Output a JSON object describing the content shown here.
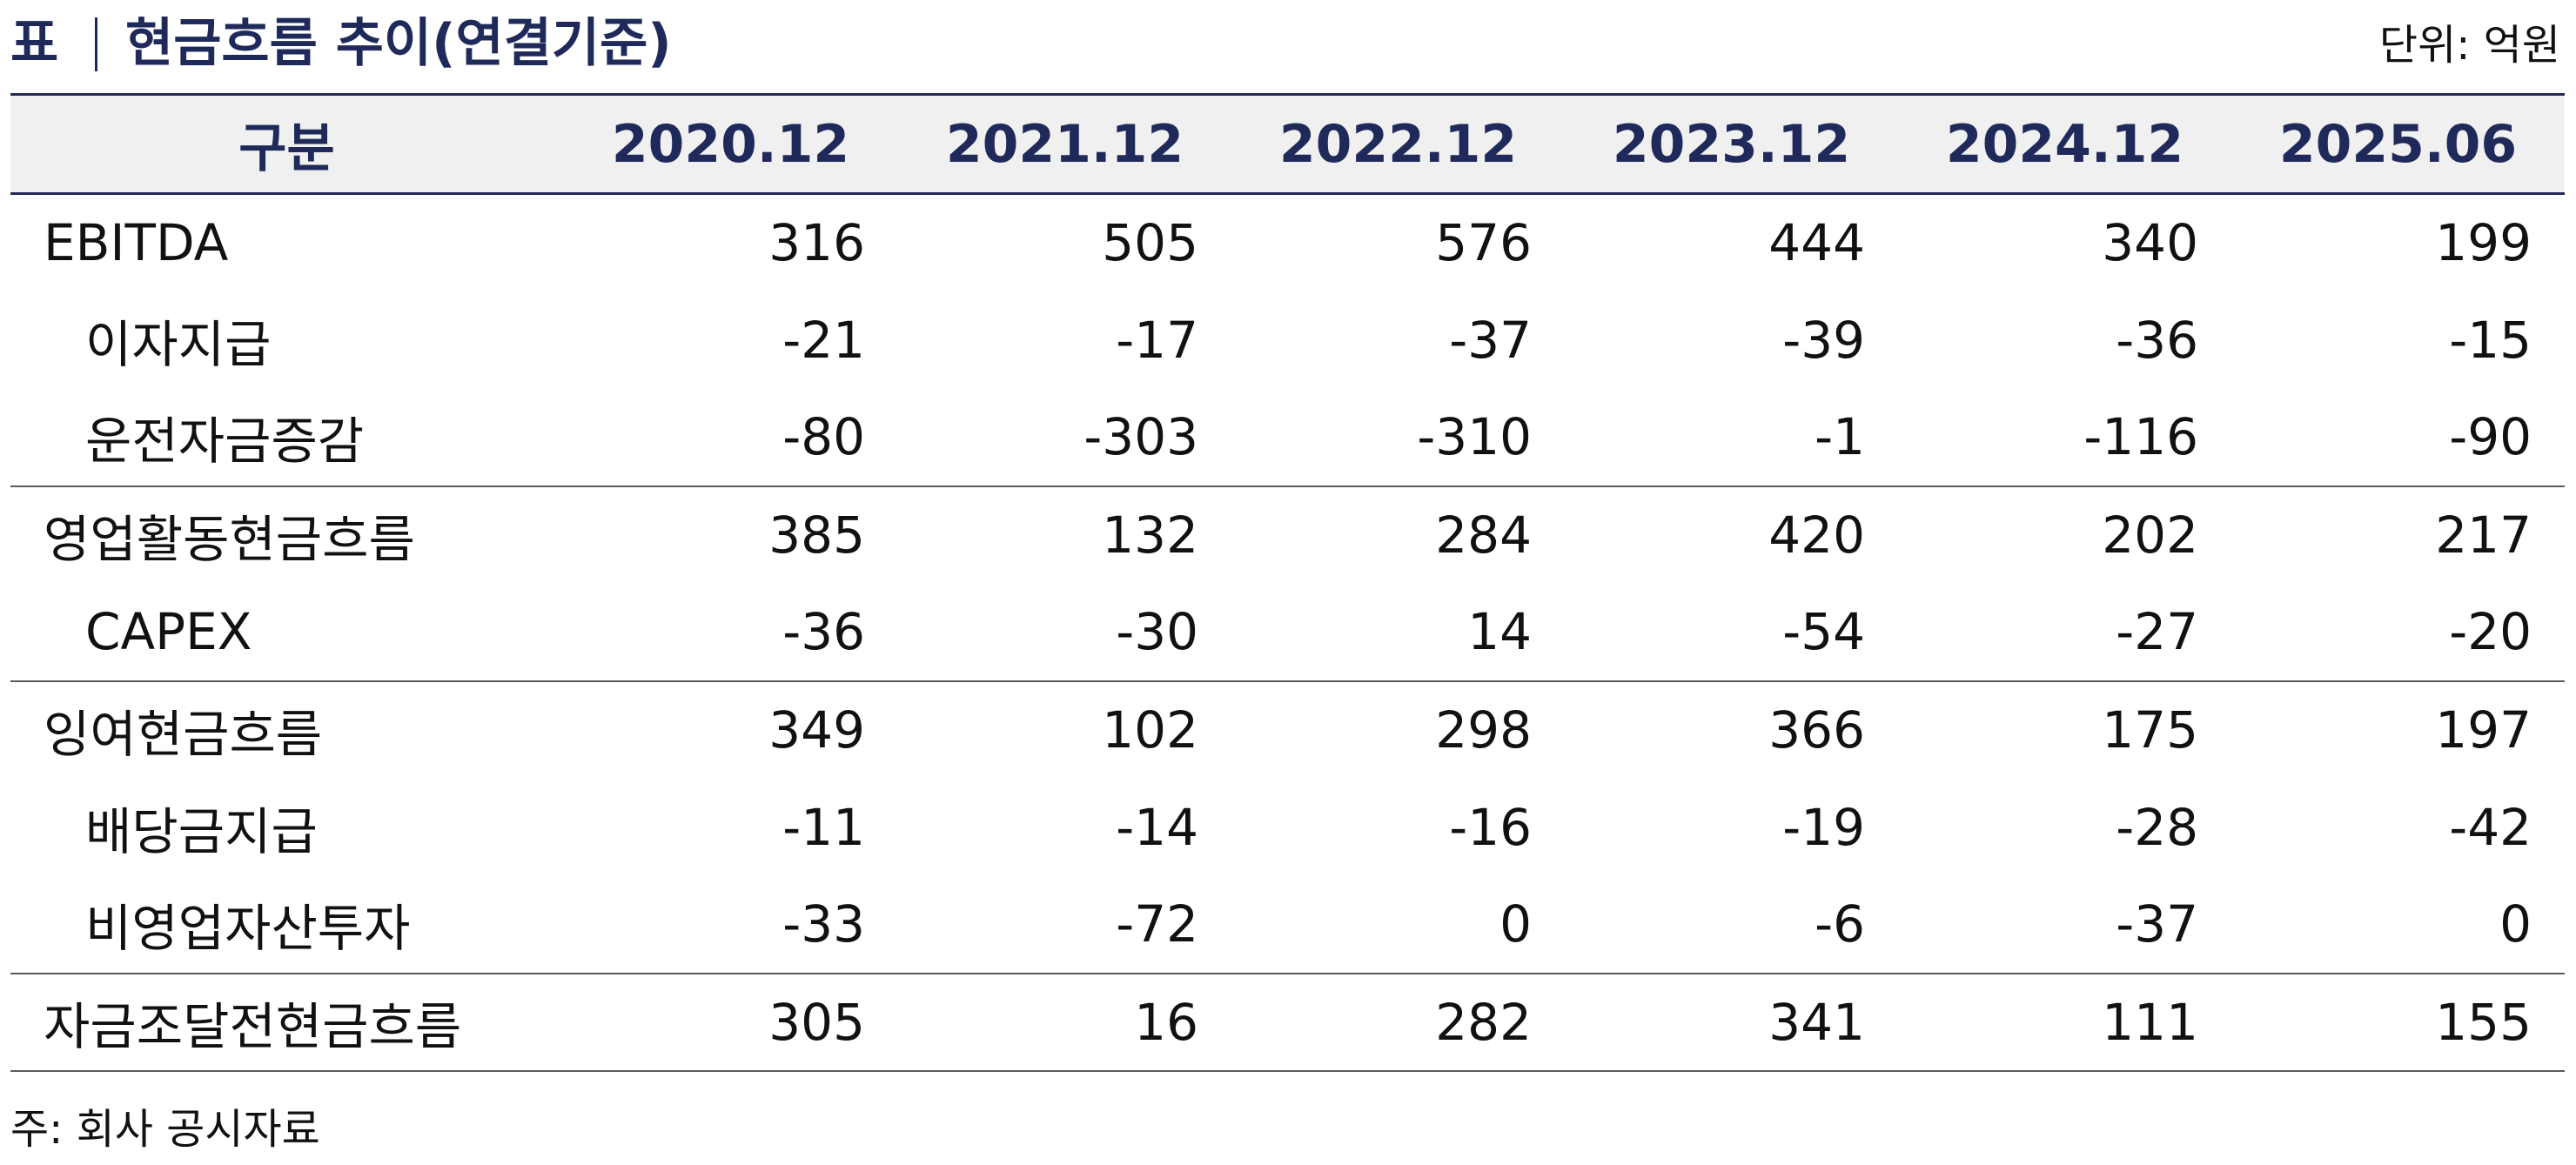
{
  "title": {
    "prefix": "표",
    "text": "현금흐름 추이(연결기준)"
  },
  "unit": "단위: 억원",
  "table": {
    "headers": [
      "구분",
      "2020.12",
      "2021.12",
      "2022.12",
      "2023.12",
      "2024.12",
      "2025.06"
    ],
    "rows": [
      {
        "label": "EBITDA",
        "values": [
          "316",
          "505",
          "576",
          "444",
          "340",
          "199"
        ]
      },
      {
        "label": "이자지급",
        "values": [
          "-21",
          "-17",
          "-37",
          "-39",
          "-36",
          "-15"
        ]
      },
      {
        "label": "운전자금증감",
        "values": [
          "-80",
          "-303",
          "-310",
          "-1",
          "-116",
          "-90"
        ]
      },
      {
        "label": "영업활동현금흐름",
        "values": [
          "385",
          "132",
          "284",
          "420",
          "202",
          "217"
        ]
      },
      {
        "label": "CAPEX",
        "values": [
          "-36",
          "-30",
          "14",
          "-54",
          "-27",
          "-20"
        ]
      },
      {
        "label": "잉여현금흐름",
        "values": [
          "349",
          "102",
          "298",
          "366",
          "175",
          "197"
        ]
      },
      {
        "label": "배당금지급",
        "values": [
          "-11",
          "-14",
          "-16",
          "-19",
          "-28",
          "-42"
        ]
      },
      {
        "label": "비영업자산투자",
        "values": [
          "-33",
          "-72",
          "0",
          "-6",
          "-37",
          "0"
        ]
      },
      {
        "label": "자금조달전현금흐름",
        "values": [
          "305",
          "16",
          "282",
          "341",
          "111",
          "155"
        ]
      }
    ]
  },
  "note": "주: 회사 공시자료",
  "colors": {
    "header_text": "#1f2a5a",
    "header_background": "#f0f0f0",
    "rule": "#1f2a5a"
  }
}
